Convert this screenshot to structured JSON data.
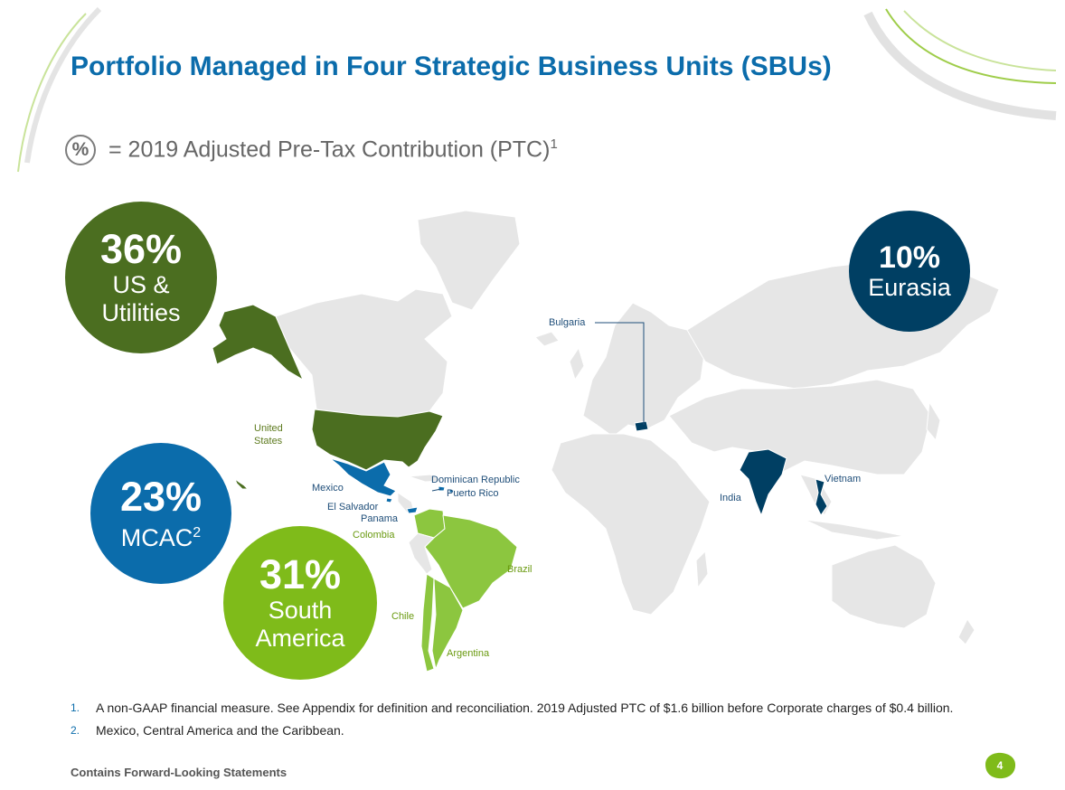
{
  "title": "Portfolio Managed in Four Strategic Business Units (SBUs)",
  "subtitle": {
    "badge": "%",
    "text": "= 2019 Adjusted Pre-Tax Contribution (PTC)",
    "sup": "1"
  },
  "sbus": [
    {
      "pct": "36%",
      "label_line1": "US &",
      "label_line2": "Utilities",
      "color": "#4b6e20"
    },
    {
      "pct": "23%",
      "label": "MCAC",
      "label_sup": "2",
      "color": "#0b6cab"
    },
    {
      "pct": "31%",
      "label_line1": "South",
      "label_line2": "America",
      "color": "#7fbb1a"
    },
    {
      "pct": "10%",
      "label": "Eurasia",
      "color": "#003f63"
    }
  ],
  "map_labels": {
    "united_states": "United States",
    "mexico": "Mexico",
    "el_salvador": "El Salvador",
    "panama": "Panama",
    "dominican_republic": "Dominican Republic",
    "puerto_rico": "Puerto Rico",
    "colombia": "Colombia",
    "brazil": "Brazil",
    "chile": "Chile",
    "argentina": "Argentina",
    "bulgaria": "Bulgaria",
    "india": "India",
    "vietnam": "Vietnam"
  },
  "map_colors": {
    "land": "#e6e6e6",
    "border": "#ffffff",
    "us_utilities": "#4b6e20",
    "mcac": "#0b6cab",
    "south_america": "#8cc63f",
    "eurasia": "#003f63"
  },
  "footnotes": [
    {
      "num": "1.",
      "text": "A non-GAAP financial measure.  See Appendix for definition and reconciliation. 2019 Adjusted PTC of $1.6 billion before Corporate charges of $0.4 billion."
    },
    {
      "num": "2.",
      "text": "Mexico, Central America and the Caribbean."
    }
  ],
  "footer": "Contains Forward-Looking Statements",
  "page_number": "4"
}
